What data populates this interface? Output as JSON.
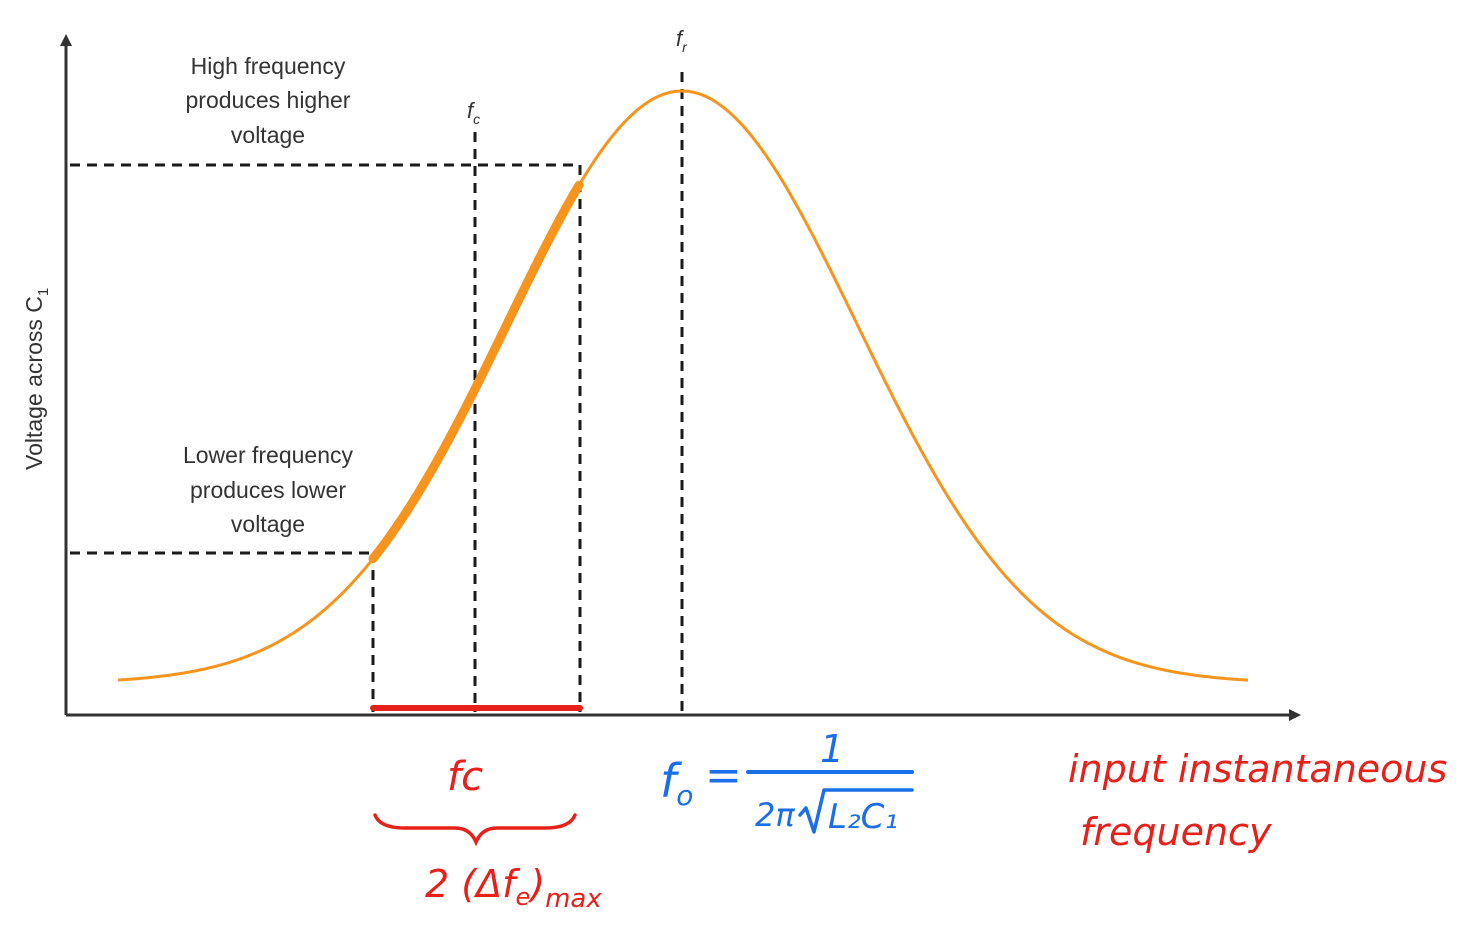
{
  "diagram": {
    "y_axis_label": "Voltage across C",
    "y_axis_label_sub": "1",
    "markers": {
      "fr": {
        "main": "f",
        "sub": "r"
      },
      "fc": {
        "main": "f",
        "sub": "c"
      }
    },
    "annotations": {
      "high_line1": "High frequency",
      "high_line2": "produces higher",
      "high_line3": "voltage",
      "low_line1": "Lower frequency",
      "low_line2": "produces lower",
      "low_line3": "voltage"
    },
    "handwritten": {
      "fc": "fc",
      "deviation_prefix": "2 (Δf",
      "deviation_sub": "e",
      "deviation_close": ")",
      "deviation_max": "max",
      "f0_main": "f",
      "f0_sub": "o",
      "equals": "=",
      "numerator": "1",
      "denominator_prefix": "2π",
      "denominator_radicand": "L₂C₁",
      "input_line1": "input instantaneous",
      "input_line2": "frequency"
    },
    "colors": {
      "curve": "#f7941d",
      "dashed": "#1a1a1a",
      "axis": "#333333",
      "red_ink": "#e8201a",
      "blue_ink": "#1a6fe8"
    }
  }
}
